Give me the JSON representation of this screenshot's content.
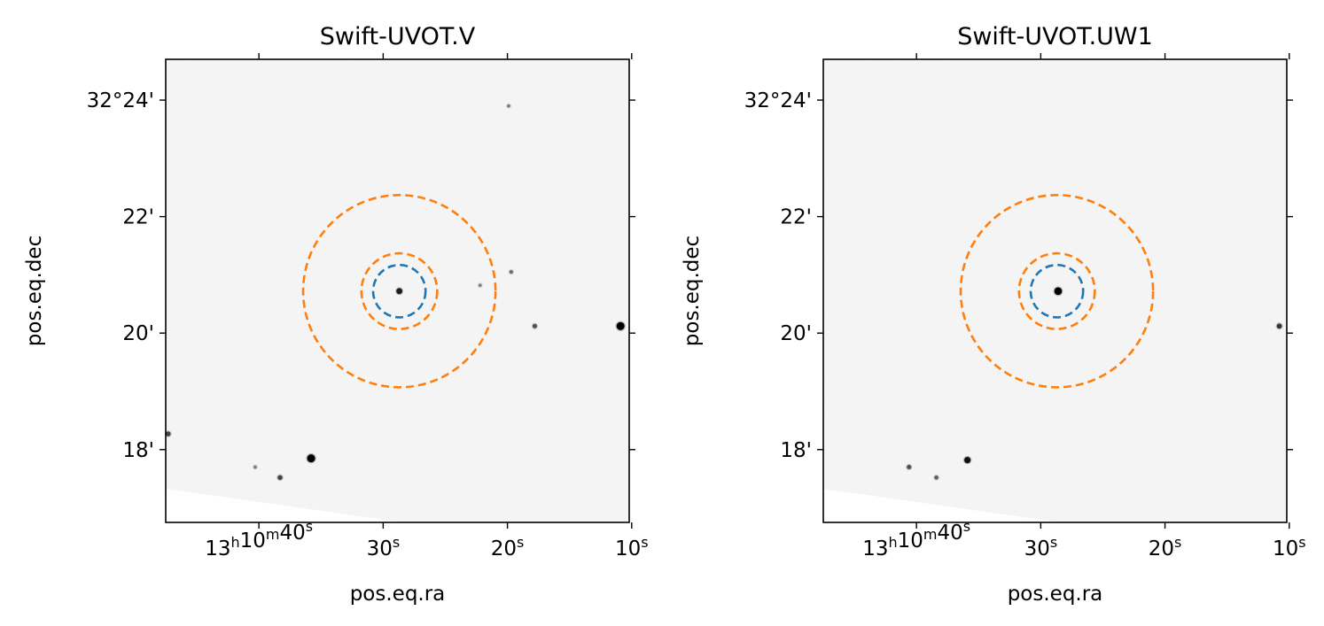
{
  "chart_data": [
    {
      "type": "image",
      "title": "Swift-UVOT.V",
      "xlabel": "pos.eq.ra",
      "ylabel": "pos.eq.dec",
      "ra_ticks": [
        {
          "h": "13",
          "m": "10",
          "s": "40",
          "value_s": 40
        },
        {
          "s": "30",
          "value_s": 30
        },
        {
          "s": "20",
          "value_s": 20
        },
        {
          "s": "10",
          "value_s": 10
        }
      ],
      "dec_ticks": [
        {
          "label": "32°24'",
          "value_arcmin": 24
        },
        {
          "label": "22'",
          "value_arcmin": 22
        },
        {
          "label": "20'",
          "value_arcmin": 20
        },
        {
          "label": "18'",
          "value_arcmin": 18
        }
      ],
      "ra_range_s": [
        47.5,
        10.2
      ],
      "dec_range_arcmin": [
        16.75,
        24.7
      ],
      "target": {
        "ra_s": 28.7,
        "dec_arcmin": 20.72
      },
      "apertures": [
        {
          "name": "source",
          "radius_arcmin": 0.45,
          "color": "#1f77b4"
        },
        {
          "name": "background-inner",
          "radius_arcmin": 0.65,
          "color": "#ff7f0e"
        },
        {
          "name": "background-outer",
          "radius_arcmin": 1.65,
          "color": "#ff7f0e"
        }
      ],
      "stars": [
        {
          "ra_s": 28.7,
          "dec_arcmin": 20.72,
          "size": 1.0
        },
        {
          "ra_s": 10.9,
          "dec_arcmin": 20.12,
          "size": 1.5
        },
        {
          "ra_s": 35.8,
          "dec_arcmin": 17.85,
          "size": 1.5
        },
        {
          "ra_s": 38.3,
          "dec_arcmin": 17.52,
          "size": 0.7
        },
        {
          "ra_s": 17.8,
          "dec_arcmin": 20.12,
          "size": 0.6
        },
        {
          "ra_s": 47.3,
          "dec_arcmin": 18.27,
          "size": 0.7
        },
        {
          "ra_s": 19.7,
          "dec_arcmin": 21.05,
          "size": 0.4
        },
        {
          "ra_s": 22.2,
          "dec_arcmin": 20.82,
          "size": 0.3
        },
        {
          "ra_s": 19.9,
          "dec_arcmin": 23.9,
          "size": 0.3
        },
        {
          "ra_s": 40.3,
          "dec_arcmin": 17.7,
          "size": 0.3
        }
      ],
      "coverage_edge": "lower-left corner masked"
    },
    {
      "type": "image",
      "title": "Swift-UVOT.UW1",
      "xlabel": "pos.eq.ra",
      "ylabel": "pos.eq.dec",
      "ra_ticks": [
        {
          "h": "13",
          "m": "10",
          "s": "40",
          "value_s": 40
        },
        {
          "s": "30",
          "value_s": 30
        },
        {
          "s": "20",
          "value_s": 20
        },
        {
          "s": "10",
          "value_s": 10
        }
      ],
      "dec_ticks": [
        {
          "label": "32°24'",
          "value_arcmin": 24
        },
        {
          "label": "22'",
          "value_arcmin": 22
        },
        {
          "label": "20'",
          "value_arcmin": 20
        },
        {
          "label": "18'",
          "value_arcmin": 18
        }
      ],
      "ra_range_s": [
        47.5,
        10.2
      ],
      "dec_range_arcmin": [
        16.75,
        24.7
      ],
      "target": {
        "ra_s": 28.7,
        "dec_arcmin": 20.72
      },
      "apertures": [
        {
          "name": "source",
          "radius_arcmin": 0.45,
          "color": "#1f77b4"
        },
        {
          "name": "background-inner",
          "radius_arcmin": 0.65,
          "color": "#ff7f0e"
        },
        {
          "name": "background-outer",
          "radius_arcmin": 1.65,
          "color": "#ff7f0e"
        }
      ],
      "stars": [
        {
          "ra_s": 28.6,
          "dec_arcmin": 20.72,
          "size": 1.4
        },
        {
          "ra_s": 10.8,
          "dec_arcmin": 20.12,
          "size": 0.8
        },
        {
          "ra_s": 35.9,
          "dec_arcmin": 17.82,
          "size": 1.1
        },
        {
          "ra_s": 38.4,
          "dec_arcmin": 17.52,
          "size": 0.5
        },
        {
          "ra_s": 40.6,
          "dec_arcmin": 17.7,
          "size": 0.6
        }
      ],
      "coverage_edge": "lower-left corner masked"
    }
  ]
}
